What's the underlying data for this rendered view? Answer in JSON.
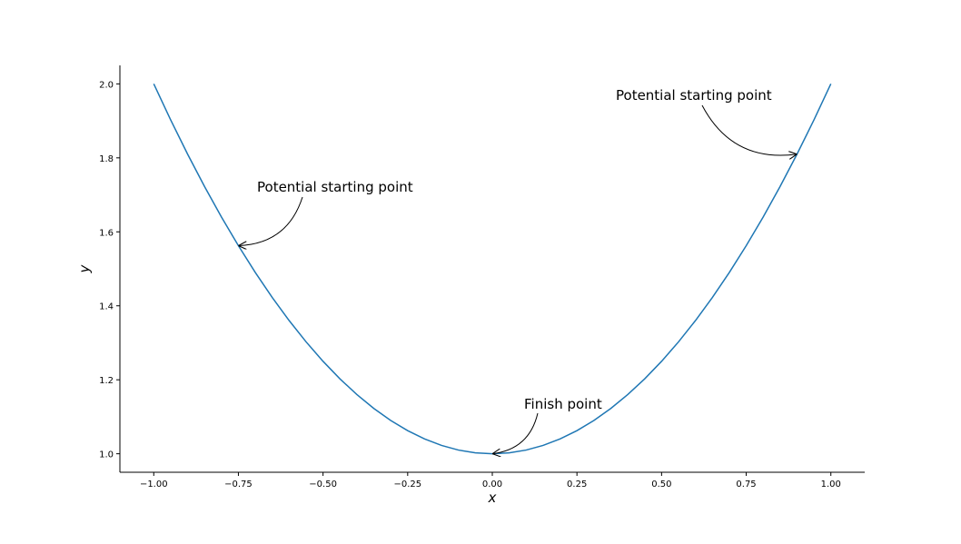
{
  "chart_data": {
    "type": "line",
    "x_label": "x",
    "y_label": "y",
    "x": [
      -1,
      -0.95,
      -0.9,
      -0.85,
      -0.8,
      -0.75,
      -0.7,
      -0.65,
      -0.6,
      -0.55,
      -0.5,
      -0.45,
      -0.4,
      -0.35,
      -0.3,
      -0.25,
      -0.2,
      -0.15,
      -0.1,
      -0.05,
      0,
      0.05,
      0.1,
      0.15,
      0.2,
      0.25,
      0.3,
      0.35,
      0.4,
      0.45,
      0.5,
      0.55,
      0.6,
      0.65,
      0.7,
      0.75,
      0.8,
      0.85,
      0.9,
      0.95,
      1
    ],
    "series": [
      {
        "color": "#1f77b4",
        "values": [
          2,
          1.9025,
          1.81,
          1.7225,
          1.64,
          1.5625,
          1.49,
          1.4225,
          1.36,
          1.3025,
          1.25,
          1.2025,
          1.16,
          1.1225,
          1.09,
          1.0625,
          1.04,
          1.0225,
          1.01,
          1.0025,
          1,
          1.0025,
          1.01,
          1.0225,
          1.04,
          1.0625,
          1.09,
          1.1225,
          1.16,
          1.2025,
          1.25,
          1.3025,
          1.36,
          1.4225,
          1.49,
          1.5625,
          1.64,
          1.7225,
          1.81,
          1.9025,
          2
        ]
      }
    ],
    "xlim": [
      -1.1,
      1.1
    ],
    "ylim": [
      0.95,
      2.05
    ],
    "xticks": [
      {
        "value": -1,
        "label": "−1.00"
      },
      {
        "value": -0.75,
        "label": "−0.75"
      },
      {
        "value": -0.5,
        "label": "−0.50"
      },
      {
        "value": -0.25,
        "label": "−0.25"
      },
      {
        "value": 0,
        "label": "0.00"
      },
      {
        "value": 0.25,
        "label": "0.25"
      },
      {
        "value": 0.5,
        "label": "0.50"
      },
      {
        "value": 0.75,
        "label": "0.75"
      },
      {
        "value": 1,
        "label": "1.00"
      }
    ],
    "yticks": [
      {
        "value": 1,
        "label": "1.0"
      },
      1.2,
      1.4,
      1.6,
      1.8,
      {
        "value": 2,
        "label": "2.0"
      }
    ],
    "annotations": [
      {
        "text": "Potential starting point",
        "x": -0.75,
        "y": 1.5625
      },
      {
        "text": "Potential starting point",
        "x": 0.9,
        "y": 1.81
      },
      {
        "text": "Finish point",
        "x": 0,
        "y": 1
      }
    ]
  }
}
